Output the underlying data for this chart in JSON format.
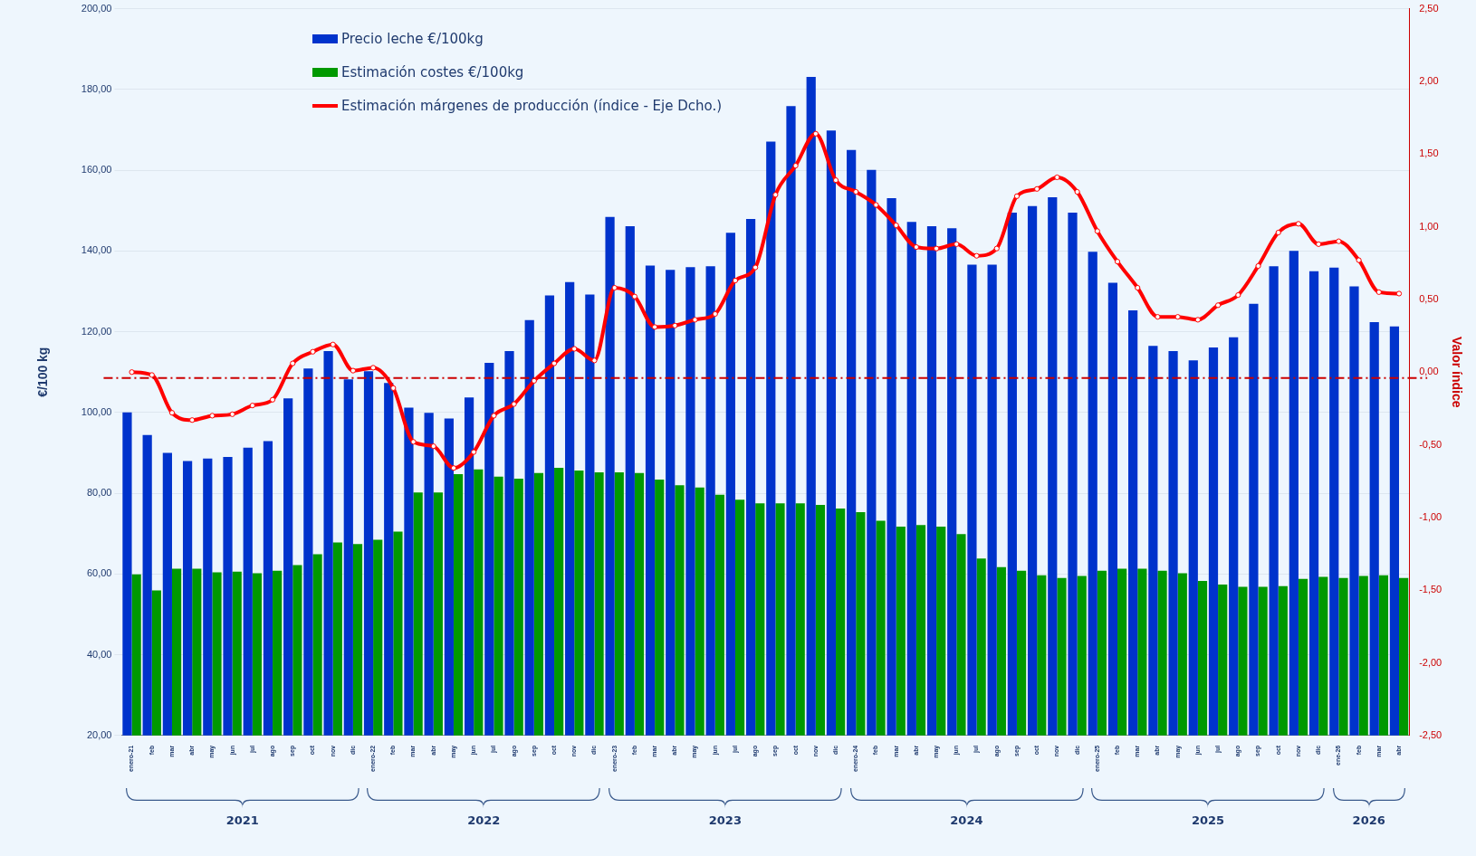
{
  "chart_data": {
    "type": "bar",
    "categories": [
      "enero-21",
      "feb",
      "mar",
      "abr",
      "may",
      "jun",
      "jul",
      "ago",
      "sep",
      "oct",
      "nov",
      "dic",
      "enero-22",
      "feb",
      "mar",
      "abr",
      "may",
      "jun",
      "jul",
      "ago",
      "sep",
      "oct",
      "nov",
      "dic",
      "enero-23",
      "feb",
      "mar",
      "abr",
      "may",
      "jun",
      "jul",
      "ago",
      "sep",
      "oct",
      "nov",
      "dic",
      "enero-24",
      "feb",
      "mar",
      "abr",
      "may",
      "jun",
      "jul",
      "ago",
      "sep",
      "oct",
      "nov",
      "dic",
      "enero-25",
      "feb",
      "mar",
      "abr",
      "may",
      "jun",
      "jul",
      "ago",
      "sep",
      "oct",
      "nov",
      "dic",
      "ene-26",
      "feb",
      "mar",
      "abr"
    ],
    "series": [
      {
        "name": "Precio leche €/100kg",
        "color": "#0033cc",
        "values": [
          100,
          94.4,
          90,
          88,
          88.6,
          89,
          91.3,
          92.9,
          103.5,
          110.9,
          115.2,
          108.2,
          110.2,
          107.3,
          101.2,
          99.9,
          98.5,
          103.7,
          112.3,
          115.2,
          122.9,
          129,
          132.3,
          129.2,
          148.4,
          146.1,
          136.4,
          135.3,
          136,
          136.2,
          144.5,
          147.9,
          167.1,
          175.9,
          183.1,
          169.8,
          165,
          160.1,
          153.1,
          147.2,
          146.1,
          145.6,
          136.6,
          136.6,
          149.5,
          151.1,
          153.3,
          149.5,
          139.8,
          132.1,
          125.3,
          116.5,
          115.2,
          112.9,
          116.1,
          118.6,
          126.9,
          136.2,
          140,
          135,
          135.9,
          131.2,
          122.4,
          121.3
        ]
      },
      {
        "name": "Estimación costes €/100kg",
        "color": "#009900",
        "values": [
          59.9,
          55.9,
          61.3,
          61.3,
          60.4,
          60.6,
          60.2,
          60.8,
          62.2,
          64.9,
          67.8,
          67.4,
          68.5,
          70.5,
          80.2,
          80.2,
          84.7,
          85.9,
          84.1,
          83.6,
          85,
          86.3,
          85.6,
          85.2,
          85.2,
          85,
          83.4,
          82,
          81.4,
          79.6,
          78.4,
          77.5,
          77.5,
          77.5,
          77.1,
          76.2,
          75.3,
          73.2,
          71.7,
          72.1,
          71.7,
          69.9,
          63.8,
          61.7,
          60.8,
          59.7,
          59,
          59.5,
          60.8,
          61.3,
          61.3,
          60.8,
          60.2,
          58.3,
          57.4,
          56.8,
          56.8,
          57,
          58.8,
          59.3,
          59,
          59.5,
          59.7,
          59
        ]
      },
      {
        "name": "Estimación márgenes de producción (índice - Eje Dcho.)",
        "color": "#ff0000",
        "type": "line",
        "axis": "y2",
        "marker": "circle",
        "values": [
          0,
          -0.02,
          -0.28,
          -0.33,
          -0.3,
          -0.29,
          -0.23,
          -0.19,
          0.06,
          0.14,
          0.19,
          0.01,
          0.03,
          -0.11,
          -0.48,
          -0.51,
          -0.66,
          -0.55,
          -0.3,
          -0.22,
          -0.06,
          0.06,
          0.16,
          0.08,
          0.58,
          0.52,
          0.31,
          0.32,
          0.36,
          0.4,
          0.63,
          0.72,
          1.22,
          1.42,
          1.64,
          1.32,
          1.24,
          1.15,
          1.01,
          0.86,
          0.85,
          0.88,
          0.8,
          0.85,
          1.21,
          1.26,
          1.34,
          1.24,
          0.97,
          0.76,
          0.58,
          0.38,
          0.38,
          0.36,
          0.46,
          0.53,
          0.73,
          0.96,
          1.02,
          0.88,
          0.9,
          0.77,
          0.55,
          0.54
        ]
      }
    ],
    "ylabel": "€/100 kg",
    "y2label": "Valor índice",
    "ylim": [
      20,
      200
    ],
    "yticks": [
      {
        "value": 20,
        "label": "20,00"
      },
      {
        "value": 40,
        "label": "40,00"
      },
      {
        "value": 60,
        "label": "60,00"
      },
      {
        "value": 80,
        "label": "80,00"
      },
      {
        "value": 100,
        "label": "100,00"
      },
      {
        "value": 120,
        "label": "120,00"
      },
      {
        "value": 140,
        "label": "140,00"
      },
      {
        "value": 160,
        "label": "160,00"
      },
      {
        "value": 180,
        "label": "180,00"
      },
      {
        "value": 200,
        "label": "200,00"
      }
    ],
    "y2lim": [
      -2.5,
      2.5
    ],
    "y2ticks": [
      {
        "value": -2.5,
        "label": "-2,50"
      },
      {
        "value": -2,
        "label": "-2,00"
      },
      {
        "value": -1.5,
        "label": "-1,50"
      },
      {
        "value": -1,
        "label": "-1,00"
      },
      {
        "value": -0.5,
        "label": "-0,50"
      },
      {
        "value": 0,
        "label": "0,00"
      },
      {
        "value": 0.5,
        "label": "0,50"
      },
      {
        "value": 1,
        "label": "1,00"
      },
      {
        "value": 1.5,
        "label": "1,50"
      },
      {
        "value": 2,
        "label": "2,00"
      },
      {
        "value": 2.5,
        "label": "2,50"
      }
    ],
    "ref_lines": [
      {
        "axis": "y2",
        "value": -0.04,
        "color": "#cc0000",
        "line_style": "dashdot"
      }
    ],
    "annotations": [
      "2021",
      "2022",
      "2023",
      "2024",
      "2025",
      "2026"
    ],
    "grid": "y",
    "legend": "top left"
  }
}
